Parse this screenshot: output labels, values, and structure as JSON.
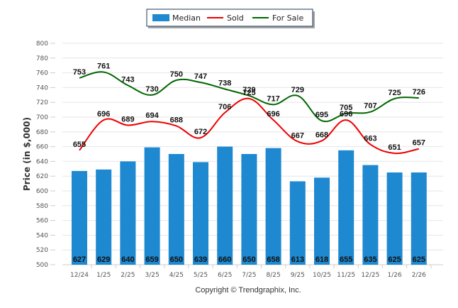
{
  "chart_data": {
    "type": "bar",
    "title": "",
    "xlabel": "",
    "ylabel": "Price (in $,000)",
    "ylim": [
      500,
      800
    ],
    "yticks": [
      500,
      520,
      540,
      560,
      580,
      600,
      620,
      640,
      660,
      680,
      700,
      720,
      740,
      760,
      780,
      800
    ],
    "grid": true,
    "legend_position": "top-center",
    "categories": [
      "12/24",
      "1/25",
      "2/25",
      "3/25",
      "4/25",
      "5/25",
      "6/25",
      "7/25",
      "8/25",
      "9/25",
      "10/25",
      "11/25",
      "12/25",
      "1/26",
      "2/26"
    ],
    "series": [
      {
        "name": "Median",
        "type": "bar",
        "color": "#1E88D0",
        "values": [
          627,
          629,
          640,
          659,
          650,
          639,
          660,
          650,
          658,
          613,
          618,
          655,
          635,
          625,
          625
        ]
      },
      {
        "name": "Sold",
        "type": "line",
        "color": "#EE0000",
        "values": [
          655,
          696,
          689,
          694,
          688,
          672,
          706,
          725,
          696,
          667,
          668,
          696,
          663,
          651,
          657
        ]
      },
      {
        "name": "For Sale",
        "type": "line",
        "color": "#006600",
        "values": [
          753,
          761,
          743,
          730,
          750,
          747,
          738,
          729,
          717,
          729,
          695,
          705,
          707,
          725,
          726
        ]
      }
    ],
    "footer": "Copyright © Trendgraphix, Inc."
  }
}
